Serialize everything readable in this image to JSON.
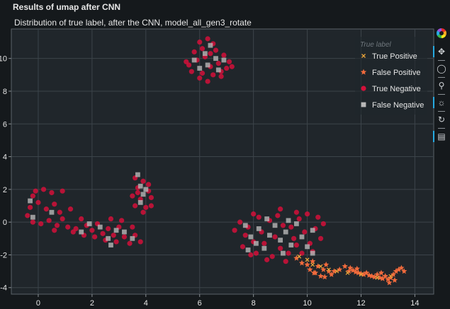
{
  "page": {
    "heading": "Results of umap after CNN"
  },
  "colors": {
    "background": "#15191c",
    "plot_background": "#20262b",
    "grid": "#3c444a",
    "axis_text": "#e6e6e6",
    "true_positive": "#e8a33a",
    "false_positive": "#f06a3c",
    "true_negative": "#d4113a",
    "false_negative": "#b8b8b8"
  },
  "toolbar": {
    "tools": [
      {
        "name": "bokeh-logo-icon",
        "active": false
      },
      {
        "name": "pan-icon",
        "glyph": "✥",
        "active": true
      },
      {
        "name": "lasso-select-icon",
        "glyph": "◯",
        "active": false
      },
      {
        "name": "wheel-zoom-icon",
        "glyph": "⚲",
        "active": false
      },
      {
        "name": "tap-icon",
        "glyph": "☼",
        "active": true
      },
      {
        "name": "reset-icon",
        "glyph": "↻",
        "active": false
      },
      {
        "name": "hover-icon",
        "glyph": "▤",
        "active": true
      }
    ]
  },
  "chart_data": {
    "type": "scatter",
    "title": "Distribution of true label, after the CNN, model_all_gen3_rotate",
    "xlim": [
      -1,
      14.7
    ],
    "ylim": [
      -4.4,
      11.8
    ],
    "xticks": [
      0,
      2,
      4,
      6,
      8,
      10,
      12,
      14
    ],
    "yticks": [
      -4,
      -2,
      0,
      2,
      4,
      6,
      8,
      10
    ],
    "grid": true,
    "legend": {
      "title": "True label",
      "placement": "top-right"
    },
    "series": [
      {
        "name": "True Positive",
        "marker": "x",
        "color": "#e8a33a",
        "points": [
          [
            9.7,
            -2.1
          ],
          [
            10.0,
            -2.3
          ],
          [
            10.2,
            -2.6
          ],
          [
            10.5,
            -2.7
          ],
          [
            10.8,
            -2.9
          ],
          [
            11.1,
            -3.0
          ],
          [
            11.5,
            -3.1
          ],
          [
            12.0,
            -3.2
          ],
          [
            12.6,
            -3.4
          ],
          [
            13.1,
            -3.3
          ]
        ]
      },
      {
        "name": "False Positive",
        "marker": "star",
        "color": "#f06a3c",
        "points": [
          [
            9.6,
            -2.2
          ],
          [
            9.8,
            -2.5
          ],
          [
            10.0,
            -2.6
          ],
          [
            10.1,
            -2.9
          ],
          [
            10.2,
            -2.4
          ],
          [
            10.3,
            -3.1
          ],
          [
            10.4,
            -2.7
          ],
          [
            10.5,
            -3.3
          ],
          [
            10.6,
            -2.9
          ],
          [
            10.7,
            -2.6
          ],
          [
            10.8,
            -3.0
          ],
          [
            10.9,
            -3.2
          ],
          [
            11.0,
            -3.0
          ],
          [
            11.2,
            -2.9
          ],
          [
            11.4,
            -2.7
          ],
          [
            11.6,
            -2.8
          ],
          [
            11.7,
            -2.95
          ],
          [
            11.8,
            -3.05
          ],
          [
            11.9,
            -3.1
          ],
          [
            12.0,
            -3.15
          ],
          [
            12.1,
            -3.2
          ],
          [
            12.2,
            -3.1
          ],
          [
            12.3,
            -3.25
          ],
          [
            12.4,
            -3.3
          ],
          [
            12.5,
            -3.35
          ],
          [
            12.6,
            -3.2
          ],
          [
            12.7,
            -3.4
          ],
          [
            12.8,
            -3.45
          ],
          [
            12.9,
            -3.3
          ],
          [
            13.0,
            -3.5
          ],
          [
            13.05,
            -3.7
          ],
          [
            13.1,
            -3.4
          ],
          [
            13.2,
            -3.2
          ],
          [
            13.3,
            -3.0
          ],
          [
            13.4,
            -2.9
          ],
          [
            13.5,
            -2.8
          ],
          [
            13.6,
            -3.0
          ],
          [
            13.25,
            -3.55
          ],
          [
            12.75,
            -3.1
          ],
          [
            11.85,
            -2.85
          ],
          [
            11.55,
            -3.0
          ],
          [
            10.65,
            -3.35
          ],
          [
            10.25,
            -3.1
          ]
        ]
      },
      {
        "name": "True Negative",
        "marker": "circle",
        "color": "#d4113a",
        "points": [
          [
            6.0,
            11.0
          ],
          [
            6.3,
            11.2
          ],
          [
            6.5,
            10.9
          ],
          [
            5.8,
            10.4
          ],
          [
            6.1,
            10.6
          ],
          [
            6.6,
            10.5
          ],
          [
            6.9,
            10.2
          ],
          [
            7.1,
            9.8
          ],
          [
            5.6,
            9.6
          ],
          [
            5.9,
            9.9
          ],
          [
            6.2,
            10.1
          ],
          [
            6.4,
            9.5
          ],
          [
            6.7,
            9.7
          ],
          [
            7.0,
            9.4
          ],
          [
            5.7,
            9.2
          ],
          [
            6.1,
            9.1
          ],
          [
            6.5,
            9.0
          ],
          [
            6.8,
            8.9
          ],
          [
            6.3,
            8.6
          ],
          [
            6.0,
            8.8
          ],
          [
            5.5,
            9.8
          ],
          [
            7.2,
            9.5
          ],
          [
            6.4,
            10.3
          ],
          [
            6.8,
            9.2
          ],
          [
            0.2,
            2.0
          ],
          [
            0.5,
            1.8
          ],
          [
            -0.2,
            1.6
          ],
          [
            0.0,
            1.2
          ],
          [
            -0.3,
            0.9
          ],
          [
            -0.4,
            0.4
          ],
          [
            -0.2,
            0.0
          ],
          [
            0.1,
            -0.1
          ],
          [
            0.4,
            0.1
          ],
          [
            0.8,
            0.6
          ],
          [
            0.6,
            1.1
          ],
          [
            0.9,
            1.9
          ],
          [
            1.2,
            0.8
          ],
          [
            0.9,
            0.2
          ],
          [
            0.7,
            -0.2
          ],
          [
            1.1,
            -0.3
          ],
          [
            1.4,
            -0.4
          ],
          [
            1.6,
            0.2
          ],
          [
            1.8,
            -0.2
          ],
          [
            2.0,
            -0.5
          ],
          [
            2.2,
            -0.1
          ],
          [
            2.4,
            -0.7
          ],
          [
            2.1,
            -0.9
          ],
          [
            2.6,
            -0.4
          ],
          [
            2.8,
            -0.8
          ],
          [
            3.0,
            -0.3
          ],
          [
            3.2,
            -0.9
          ],
          [
            2.9,
            -1.2
          ],
          [
            2.5,
            -1.1
          ],
          [
            3.4,
            -1.3
          ],
          [
            3.6,
            -0.8
          ],
          [
            3.8,
            -1.2
          ],
          [
            3.5,
            -0.3
          ],
          [
            3.1,
            0.1
          ],
          [
            2.7,
            0.2
          ],
          [
            1.7,
            -0.8
          ],
          [
            1.3,
            -0.6
          ],
          [
            0.3,
            0.8
          ],
          [
            -0.1,
            1.9
          ],
          [
            0.6,
            -0.5
          ],
          [
            3.6,
            2.7
          ],
          [
            3.9,
            2.5
          ],
          [
            3.7,
            2.1
          ],
          [
            4.1,
            1.9
          ],
          [
            3.5,
            1.6
          ],
          [
            3.8,
            1.4
          ],
          [
            4.2,
            1.5
          ],
          [
            3.6,
            1.0
          ],
          [
            4.0,
            0.9
          ],
          [
            3.9,
            0.6
          ],
          [
            4.2,
            1.0
          ],
          [
            3.7,
            1.8
          ],
          [
            4.1,
            2.3
          ],
          [
            7.5,
            0.0
          ],
          [
            7.8,
            -0.3
          ],
          [
            7.7,
            -0.8
          ],
          [
            8.0,
            -1.2
          ],
          [
            7.6,
            -1.5
          ],
          [
            8.1,
            -1.9
          ],
          [
            8.4,
            -1.3
          ],
          [
            8.3,
            -0.6
          ],
          [
            8.6,
            0.1
          ],
          [
            8.9,
            0.4
          ],
          [
            9.1,
            -0.2
          ],
          [
            8.8,
            -0.9
          ],
          [
            9.0,
            -1.6
          ],
          [
            8.7,
            -2.1
          ],
          [
            9.3,
            -1.9
          ],
          [
            9.5,
            -1.0
          ],
          [
            9.4,
            -0.3
          ],
          [
            9.7,
            0.2
          ],
          [
            9.9,
            -0.6
          ],
          [
            10.1,
            -1.3
          ],
          [
            10.3,
            -0.4
          ],
          [
            10.6,
            -0.1
          ],
          [
            10.4,
            0.3
          ],
          [
            10.0,
            0.5
          ],
          [
            9.6,
            0.6
          ],
          [
            8.2,
            0.3
          ],
          [
            7.9,
            -2.0
          ],
          [
            8.5,
            -2.3
          ],
          [
            9.2,
            -2.4
          ],
          [
            9.8,
            -1.9
          ],
          [
            10.2,
            -1.8
          ],
          [
            10.5,
            -1.0
          ],
          [
            7.3,
            -0.5
          ],
          [
            8.0,
            0.5
          ],
          [
            9.0,
            0.8
          ],
          [
            9.6,
            -1.4
          ]
        ]
      },
      {
        "name": "False Negative",
        "marker": "square",
        "color": "#b8b8b8",
        "points": [
          [
            5.8,
            9.9
          ],
          [
            6.2,
            10.3
          ],
          [
            6.6,
            10.0
          ],
          [
            6.3,
            9.6
          ],
          [
            6.9,
            9.9
          ],
          [
            6.0,
            9.4
          ],
          [
            6.7,
            9.3
          ],
          [
            6.4,
            10.8
          ],
          [
            -0.3,
            1.3
          ],
          [
            -0.2,
            0.3
          ],
          [
            0.5,
            0.6
          ],
          [
            1.9,
            -0.1
          ],
          [
            2.3,
            -0.3
          ],
          [
            2.6,
            -1.0
          ],
          [
            2.9,
            -0.5
          ],
          [
            3.2,
            -0.6
          ],
          [
            2.7,
            -1.4
          ],
          [
            3.5,
            -1.0
          ],
          [
            1.6,
            -0.6
          ],
          [
            3.7,
            2.9
          ],
          [
            3.8,
            2.2
          ],
          [
            3.9,
            1.7
          ],
          [
            3.8,
            1.2
          ],
          [
            4.0,
            2.0
          ],
          [
            7.7,
            -0.2
          ],
          [
            7.9,
            -0.9
          ],
          [
            8.2,
            -0.4
          ],
          [
            8.4,
            -1.6
          ],
          [
            8.6,
            -0.8
          ],
          [
            8.8,
            -0.2
          ],
          [
            9.0,
            -1.1
          ],
          [
            9.2,
            -0.6
          ],
          [
            9.4,
            -1.4
          ],
          [
            9.6,
            -0.1
          ],
          [
            9.8,
            -0.9
          ],
          [
            10.0,
            -1.5
          ],
          [
            10.2,
            -0.5
          ],
          [
            8.5,
            0.2
          ],
          [
            9.3,
            0.1
          ],
          [
            8.1,
            -1.3
          ],
          [
            9.1,
            -1.9
          ],
          [
            10.2,
            -1.9
          ],
          [
            7.8,
            -1.7
          ]
        ]
      }
    ]
  }
}
